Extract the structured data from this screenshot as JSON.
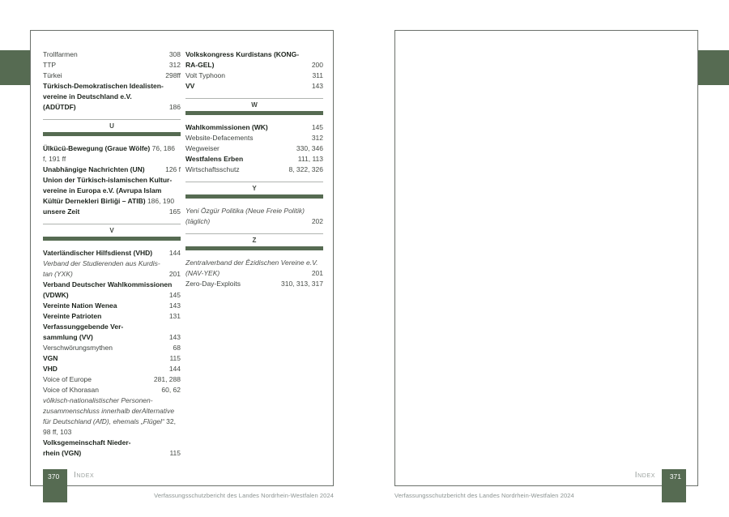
{
  "colors": {
    "accent_green": "#566b52",
    "page_border_gray": "#6b716b"
  },
  "index_label": "Index",
  "footer_text": "Verfassungsschutzbericht des Landes Nordrhein-Westfalen 2024",
  "left_page": {
    "page_number": "370",
    "columns": [
      {
        "sections": [
          {
            "letter": "",
            "entries": [
              {
                "name": "Trollfarmen",
                "pages": "308",
                "style": "regular"
              },
              {
                "name": "TTP",
                "pages": "312",
                "style": "regular"
              },
              {
                "name": "Türkei",
                "pages": "298ff",
                "style": "regular"
              },
              {
                "name": "Türkisch-Demokratischen Idealisten-\nvereine in Deutschland e.V.\n(ADÜTDF)",
                "pages": "186",
                "style": "bold"
              }
            ]
          },
          {
            "letter": "U",
            "entries": [
              {
                "name": "Ülkücü-Bewegung (Graue Wölfe)",
                "pages": "76, 186 f, 191 ff",
                "style": "bold",
                "inline": true
              },
              {
                "name": "Unabhängige Nachrichten (UN)",
                "pages": "126 f",
                "style": "bold"
              },
              {
                "name": "Union der Türkisch-islamischen Kultur-\nvereine in Europa e.V. (Avrupa Islam\nKültür Dernekleri Birliği – ATIB)",
                "pages": "186, 190",
                "style": "bold",
                "inline": true
              },
              {
                "name": "unsere Zeit",
                "pages": "165",
                "style": "bold"
              }
            ]
          },
          {
            "letter": "V",
            "entries": [
              {
                "name": "Vaterländischer Hilfsdienst (VHD)",
                "pages": "144",
                "style": "bold"
              },
              {
                "name": "Verband der Studierenden aus Kurdis-\ntan (YXK)",
                "pages": "201",
                "style": "italic"
              },
              {
                "name": "Verband Deutscher Wahlkommissionen\n(VDWK)",
                "pages": "145",
                "style": "bold"
              },
              {
                "name": "Vereinte Nation Wenea",
                "pages": "143",
                "style": "bold"
              },
              {
                "name": "Vereinte Patrioten",
                "pages": "131",
                "style": "bold"
              },
              {
                "name": "Verfassunggebende Ver-\nsammlung (VV)",
                "pages": "143",
                "style": "bold"
              },
              {
                "name": "Verschwörungsmythen",
                "pages": "68",
                "style": "regular"
              },
              {
                "name": "VGN",
                "pages": "115",
                "style": "bold"
              },
              {
                "name": "VHD",
                "pages": "144",
                "style": "bold"
              },
              {
                "name": "Voice of Europe",
                "pages": "281, 288",
                "style": "regular"
              },
              {
                "name": "Voice of Khorasan",
                "pages": "60, 62",
                "style": "regular"
              },
              {
                "name": "völkisch-nationalistischer Personen-\nzusammenschluss innerhalb derAlternative\nfür Deutschland (AfD), ehemals „Flügel“",
                "pages": "32, 98 ff, 103",
                "style": "italic",
                "inline": true
              },
              {
                "name": "Volksgemeinschaft Nieder-\nrhein (VGN)",
                "pages": "115",
                "style": "bold"
              }
            ]
          }
        ]
      },
      {
        "sections": [
          {
            "letter": "",
            "entries": [
              {
                "name": "Volkskongress Kurdistans (KONG-\nRA-GEL)",
                "pages": "200",
                "style": "bold"
              },
              {
                "name": "Volt Typhoon",
                "pages": "311",
                "style": "regular"
              },
              {
                "name": "VV",
                "pages": "143",
                "style": "bold"
              }
            ]
          },
          {
            "letter": "W",
            "entries": [
              {
                "name": "Wahlkommissionen (WK)",
                "pages": "145",
                "style": "bold"
              },
              {
                "name": "Website-Defacements",
                "pages": "312",
                "style": "regular"
              },
              {
                "name": "Wegweiser",
                "pages": "330, 346",
                "style": "regular"
              },
              {
                "name": "Westfalens Erben",
                "pages": "111, 113",
                "style": "bold"
              },
              {
                "name": "Wirtschaftsschutz",
                "pages": "8, 322, 326",
                "style": "regular"
              }
            ]
          },
          {
            "letter": "Y",
            "entries": [
              {
                "name": "Yeni Özgür Politika (Neue Freie Politik)\n(täglich)",
                "pages": "202",
                "style": "italic"
              }
            ]
          },
          {
            "letter": "Z",
            "entries": [
              {
                "name": "Zentralverband der Êzidischen Vereine e.V. (NAV-YEK)",
                "pages": "201",
                "style": "italic"
              },
              {
                "name": "Zero-Day-Exploits",
                "pages": "310, 313, 317",
                "style": "regular"
              }
            ]
          }
        ]
      }
    ]
  },
  "right_page": {
    "page_number": "371"
  }
}
